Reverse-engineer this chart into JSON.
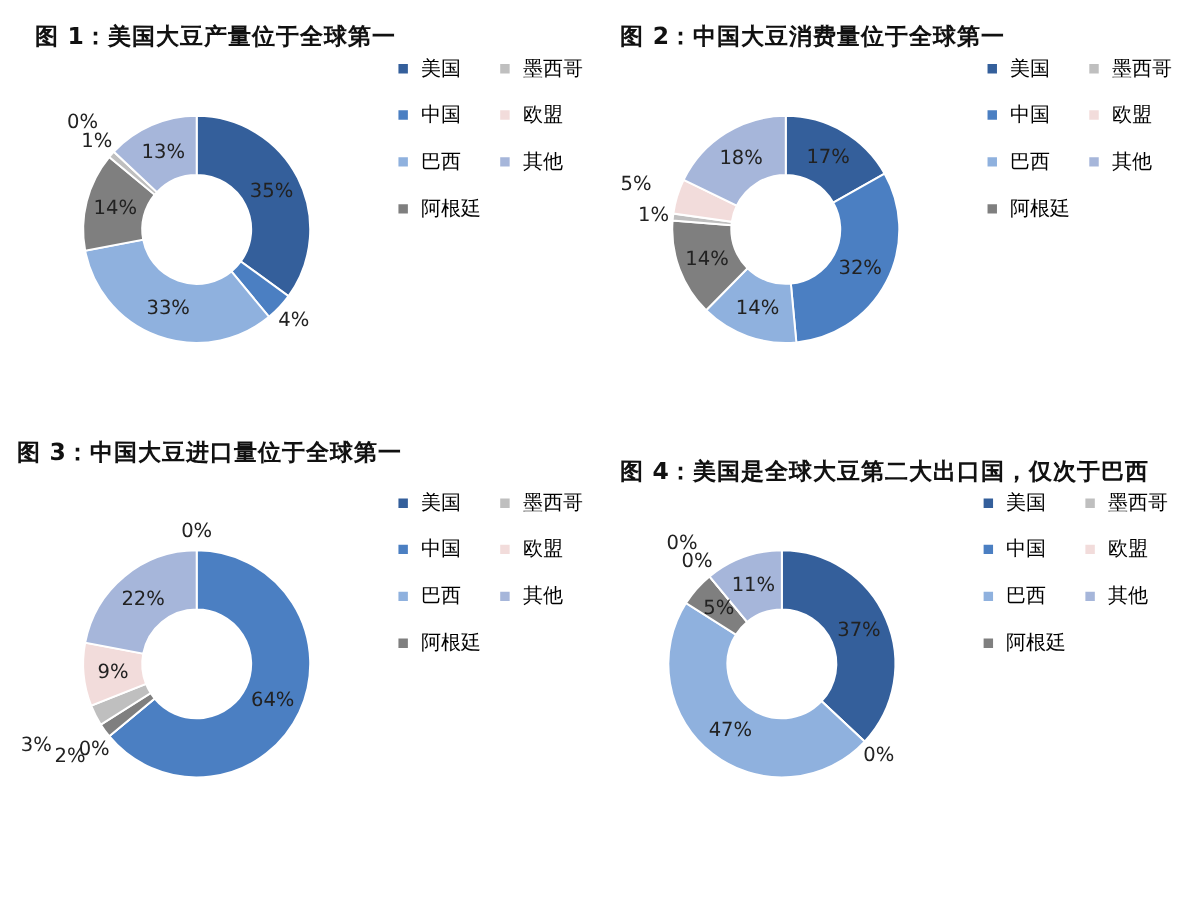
{
  "chart_data": [
    {
      "type": "donut",
      "title": "图 1：美国大豆产量位于全球第一",
      "categories": [
        "美国",
        "中国",
        "巴西",
        "阿根廷",
        "墨西哥",
        "欧盟",
        "其他"
      ],
      "values": [
        35,
        4,
        33,
        14,
        1,
        0,
        13
      ],
      "value_labels": [
        "35%",
        "4%",
        "33%",
        "14%",
        "1%",
        "0%",
        "13%"
      ],
      "colors": [
        "#345f9b",
        "#4b7fc2",
        "#8fb1de",
        "#7f7f7f",
        "#bfbfbf",
        "#f2dcdb",
        "#a6b6da"
      ],
      "legend": "right"
    },
    {
      "type": "donut",
      "title": "图 2：中国大豆消费量位于全球第一",
      "categories": [
        "美国",
        "中国",
        "巴西",
        "阿根廷",
        "墨西哥",
        "欧盟",
        "其他"
      ],
      "values": [
        17,
        32,
        14,
        14,
        1,
        5,
        18
      ],
      "value_labels": [
        "17%",
        "32%",
        "14%",
        "14%",
        "1%",
        "5%",
        "18%"
      ],
      "colors": [
        "#345f9b",
        "#4b7fc2",
        "#8fb1de",
        "#7f7f7f",
        "#bfbfbf",
        "#f2dcdb",
        "#a6b6da"
      ],
      "legend": "right"
    },
    {
      "type": "donut",
      "title": "图 3：中国大豆进口量位于全球第一",
      "categories": [
        "美国",
        "中国",
        "巴西",
        "阿根廷",
        "墨西哥",
        "欧盟",
        "其他"
      ],
      "values": [
        0,
        64,
        0,
        2,
        3,
        9,
        22
      ],
      "value_labels": [
        "0%",
        "64%",
        "0%",
        "2%",
        "3%",
        "9%",
        "22%"
      ],
      "colors": [
        "#345f9b",
        "#4b7fc2",
        "#8fb1de",
        "#7f7f7f",
        "#bfbfbf",
        "#f2dcdb",
        "#a6b6da"
      ],
      "legend": "right"
    },
    {
      "type": "donut",
      "title": "图 4：美国是全球大豆第二大出口国，仅次于巴西",
      "categories": [
        "美国",
        "中国",
        "巴西",
        "阿根廷",
        "墨西哥",
        "欧盟",
        "其他"
      ],
      "values": [
        37,
        0,
        47,
        5,
        0,
        0,
        11
      ],
      "value_labels": [
        "37%",
        "0%",
        "47%",
        "5%",
        "0%",
        "0%",
        "11%"
      ],
      "colors": [
        "#345f9b",
        "#4b7fc2",
        "#8fb1de",
        "#7f7f7f",
        "#bfbfbf",
        "#f2dcdb",
        "#a6b6da"
      ],
      "legend": "right"
    }
  ]
}
